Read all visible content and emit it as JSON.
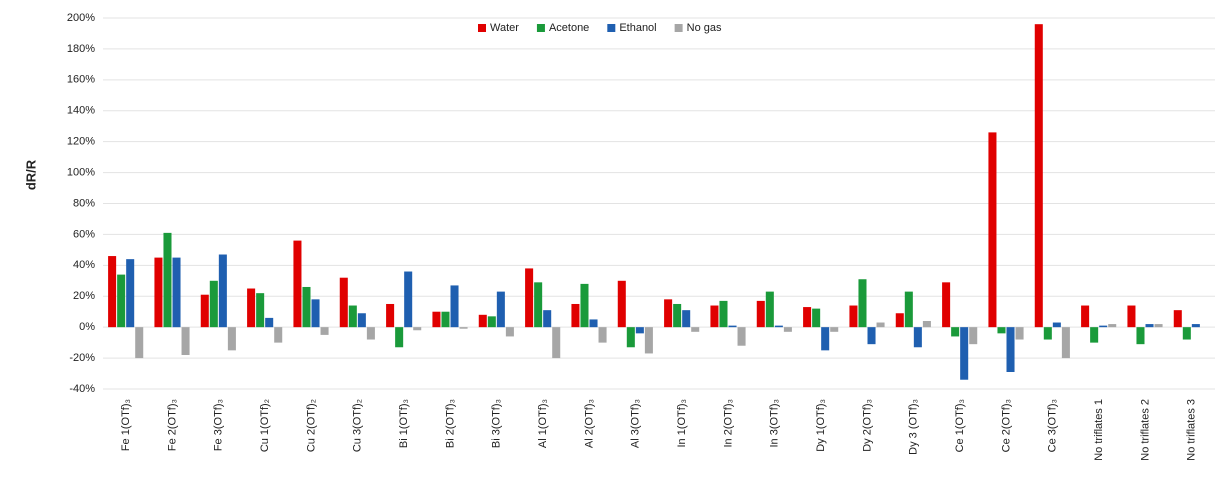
{
  "chart_data": {
    "type": "bar",
    "y_label": "dR/R",
    "categories": [
      "Fe 1(OTf)₃",
      "Fe 2(OTf)₃",
      "Fe 3(OTf)₃",
      "Cu 1(OTf)₂",
      "Cu 2(OTf)₂",
      "Cu 3(OTf)₂",
      "Bi 1(OTf)₃",
      "Bi 2(OTf)₃",
      "Bi 3(OTf)₃",
      "Al 1(OTf)₃",
      "Al 2(OTf)₃",
      "Al 3(OTf)₃",
      "In 1(OTf)₃",
      "In 2(OTf)₃",
      "In 3(OTf)₃",
      "Dy 1(OTf)₃",
      "Dy 2(OTf)₃",
      "Dy 3 (OTf)₃",
      "Ce 1(OTf)₃",
      "Ce 2(OTf)₃",
      "Ce 3(OTf)₃",
      "No triflates 1",
      "No triflates 2",
      "No triflates 3"
    ],
    "series": [
      {
        "name": "Water",
        "color": "#e00000",
        "values": [
          46,
          45,
          21,
          25,
          56,
          32,
          15,
          10,
          8,
          38,
          15,
          30,
          18,
          14,
          17,
          13,
          14,
          9,
          29,
          126,
          196,
          14,
          14,
          11
        ]
      },
      {
        "name": "Acetone",
        "color": "#1a9a3a",
        "values": [
          34,
          61,
          30,
          22,
          26,
          14,
          -13,
          10,
          7,
          29,
          28,
          -13,
          15,
          17,
          23,
          12,
          31,
          23,
          -6,
          -4,
          -8,
          -10,
          -11,
          -8
        ]
      },
      {
        "name": "Ethanol",
        "color": "#1f5fb0",
        "values": [
          44,
          45,
          47,
          6,
          18,
          9,
          36,
          27,
          23,
          11,
          5,
          -4,
          11,
          1,
          1,
          -15,
          -11,
          -13,
          -34,
          -29,
          3,
          1,
          2,
          2
        ]
      },
      {
        "name": "No gas",
        "color": "#a6a6a6",
        "values": [
          -20,
          -18,
          -15,
          -10,
          -5,
          -8,
          -2,
          -1,
          -6,
          -20,
          -10,
          -17,
          -3,
          -12,
          -3,
          -3,
          3,
          4,
          -11,
          -8,
          -20,
          2,
          2,
          0
        ]
      }
    ],
    "ylim": [
      -40,
      200
    ],
    "yticks": [
      {
        "value": -40,
        "label": "-40%"
      },
      {
        "value": -20,
        "label": "-20%"
      },
      {
        "value": 0,
        "label": "0%"
      },
      {
        "value": 20,
        "label": "20%"
      },
      {
        "value": 40,
        "label": "40%"
      },
      {
        "value": 60,
        "label": "60%"
      },
      {
        "value": 80,
        "label": "80%"
      },
      {
        "value": 100,
        "label": "100%"
      },
      {
        "value": 120,
        "label": "120%"
      },
      {
        "value": 140,
        "label": "140%"
      },
      {
        "value": 160,
        "label": "160%"
      },
      {
        "value": 180,
        "label": "180%"
      },
      {
        "value": 200,
        "label": "200%"
      }
    ],
    "grid": true,
    "legend": "top"
  }
}
